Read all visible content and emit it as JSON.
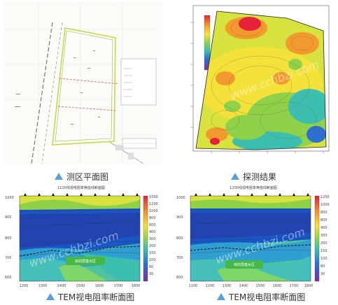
{
  "panels": {
    "plan": {
      "caption": "测区平面图"
    },
    "result": {
      "caption": "探测结果"
    },
    "tem1": {
      "caption": "TEM视电阻率断面图",
      "title": "1120线视电阻率等值线断面图",
      "x_ticks": [
        "1200",
        "1300",
        "1400",
        "1500",
        "1600",
        "1700",
        "1800"
      ],
      "y_ticks": [
        "1000",
        "900",
        "800",
        "700",
        "600"
      ],
      "colorbar": [
        "1500",
        "1200",
        "1000",
        "800",
        "600",
        "400",
        "300",
        "200",
        "150",
        "100",
        "60",
        "30"
      ],
      "annotation": "目的层富水区"
    },
    "tem2": {
      "caption": "TEM视电阻率断面图",
      "title": "1200线视电阻率等值线断面图",
      "x_ticks": [
        "1100",
        "1200",
        "1300",
        "1400",
        "1500",
        "1600",
        "1700",
        "1800"
      ],
      "y_ticks": [
        "1000",
        "900",
        "800",
        "700",
        "600"
      ],
      "colorbar": [
        "1200",
        "1000",
        "800",
        "600",
        "400",
        "300",
        "200",
        "150",
        "100",
        "60",
        "30"
      ],
      "annotation": "目的层富水区"
    }
  },
  "watermark": "www.cchbzi.com"
}
